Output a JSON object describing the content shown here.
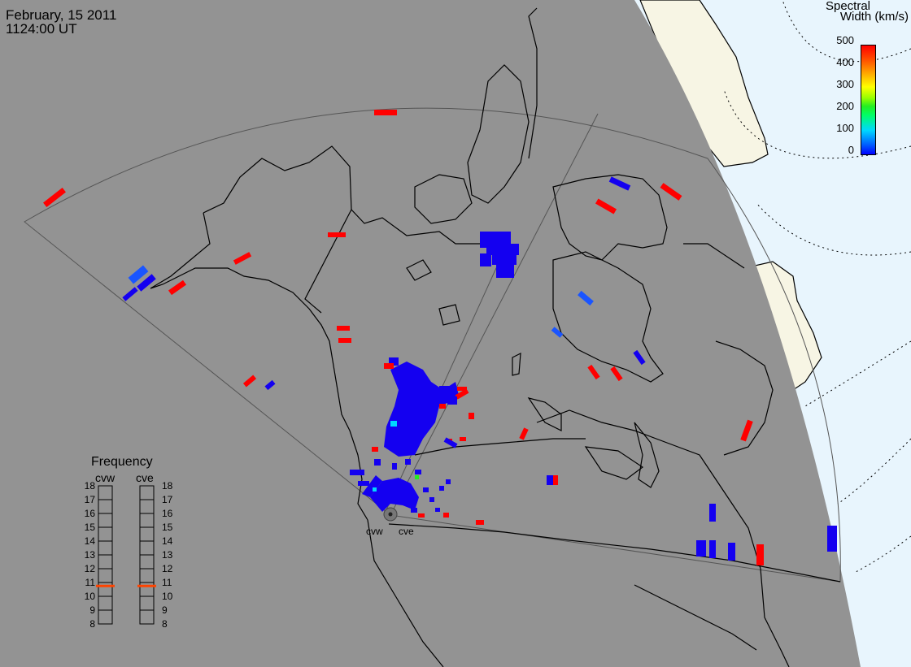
{
  "header": {
    "date": "February, 15 2011",
    "time": "1124:00 UT"
  },
  "colorbar": {
    "title_line1": "Spectral",
    "title_line2": "Width (km/s)",
    "ticks": [
      "500",
      "400",
      "300",
      "200",
      "100",
      "0"
    ],
    "range": [
      0,
      500
    ]
  },
  "frequency_panel": {
    "title": "Frequency",
    "columns": [
      {
        "label": "cvw",
        "marker_value": 10.75,
        "marker_color": "#ff4400"
      },
      {
        "label": "cve",
        "marker_value": 10.75,
        "marker_color": "#ff4400"
      }
    ],
    "scale": [
      "18",
      "17",
      "16",
      "15",
      "14",
      "13",
      "12",
      "11",
      "10",
      "9",
      "8"
    ]
  },
  "radar_sites": [
    {
      "label": "cvw"
    },
    {
      "label": "cve"
    }
  ],
  "colors": {
    "night": "#939393",
    "day_ocean": "#e8f5fd",
    "day_land": "#f7f5e4",
    "coast": "#000000",
    "low_width": "#0000ff",
    "high_width": "#ff0000"
  }
}
